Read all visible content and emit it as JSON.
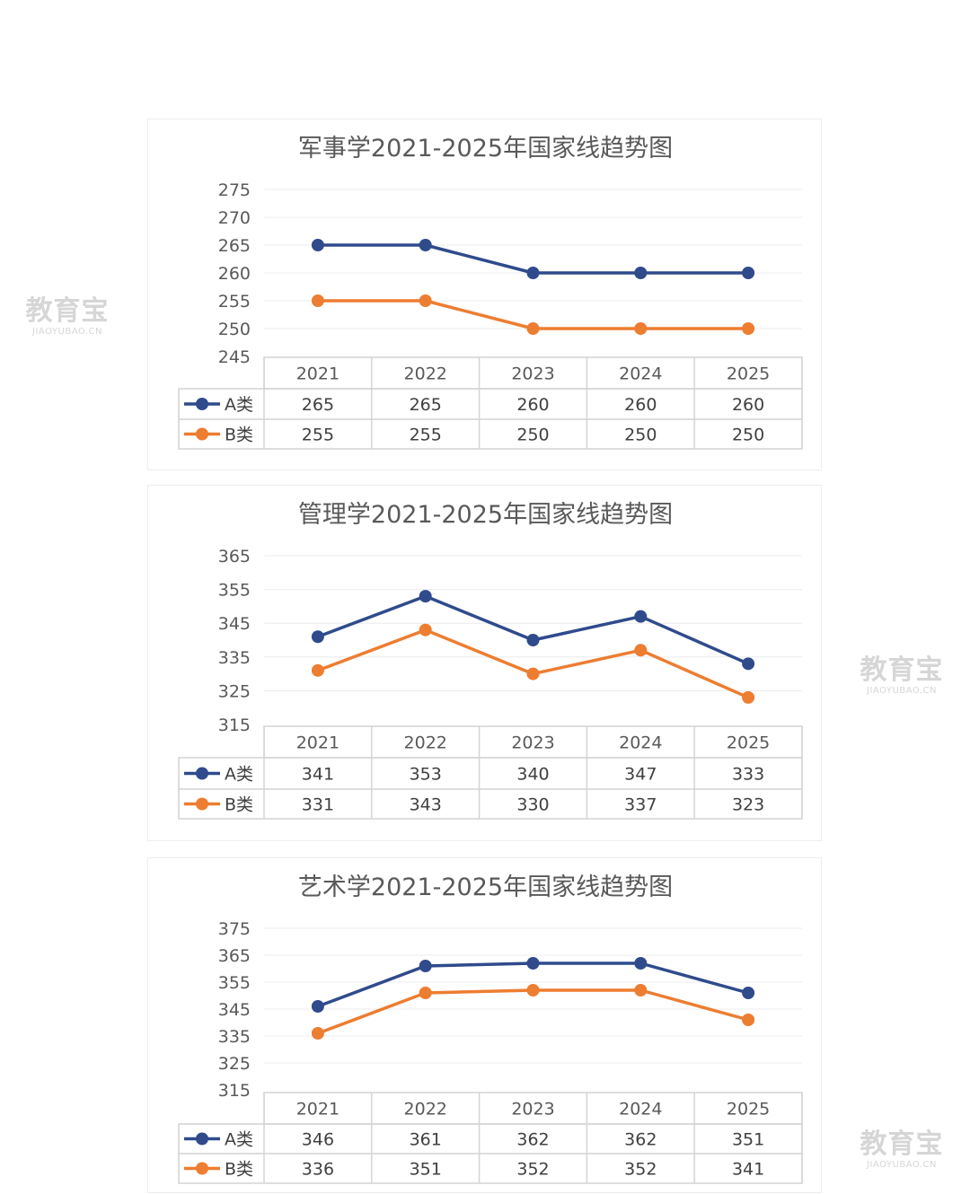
{
  "watermark": {
    "cn": "教育宝",
    "en": "JIAOYUBAO.CN"
  },
  "colors": {
    "series_a": "#2f4b8c",
    "series_b": "#ed7d31",
    "grid": "#ececec",
    "table_border": "#d4d4d4"
  },
  "chart_data": [
    {
      "type": "line",
      "title": "军事学2021-2025年国家线趋势图",
      "categories": [
        "2021",
        "2022",
        "2023",
        "2024",
        "2025"
      ],
      "yticks": [
        275,
        270,
        265,
        260,
        255,
        250,
        245
      ],
      "ylim": [
        245,
        275
      ],
      "grid": true,
      "legend": "data-table-left",
      "series": [
        {
          "name": "A类",
          "values": [
            265,
            265,
            260,
            260,
            260
          ]
        },
        {
          "name": "B类",
          "values": [
            255,
            255,
            250,
            250,
            250
          ]
        }
      ]
    },
    {
      "type": "line",
      "title": "管理学2021-2025年国家线趋势图",
      "categories": [
        "2021",
        "2022",
        "2023",
        "2024",
        "2025"
      ],
      "yticks": [
        365,
        355,
        345,
        335,
        325,
        315
      ],
      "ylim": [
        315,
        365
      ],
      "grid": true,
      "legend": "data-table-left",
      "series": [
        {
          "name": "A类",
          "values": [
            341,
            353,
            340,
            347,
            333
          ]
        },
        {
          "name": "B类",
          "values": [
            331,
            343,
            330,
            337,
            323
          ]
        }
      ]
    },
    {
      "type": "line",
      "title": "艺术学2021-2025年国家线趋势图",
      "categories": [
        "2021",
        "2022",
        "2023",
        "2024",
        "2025"
      ],
      "yticks": [
        375,
        365,
        355,
        345,
        335,
        325,
        315
      ],
      "ylim": [
        315,
        375
      ],
      "grid": true,
      "legend": "data-table-left",
      "series": [
        {
          "name": "A类",
          "values": [
            346,
            361,
            362,
            362,
            351
          ]
        },
        {
          "name": "B类",
          "values": [
            336,
            351,
            352,
            352,
            341
          ]
        }
      ]
    }
  ]
}
